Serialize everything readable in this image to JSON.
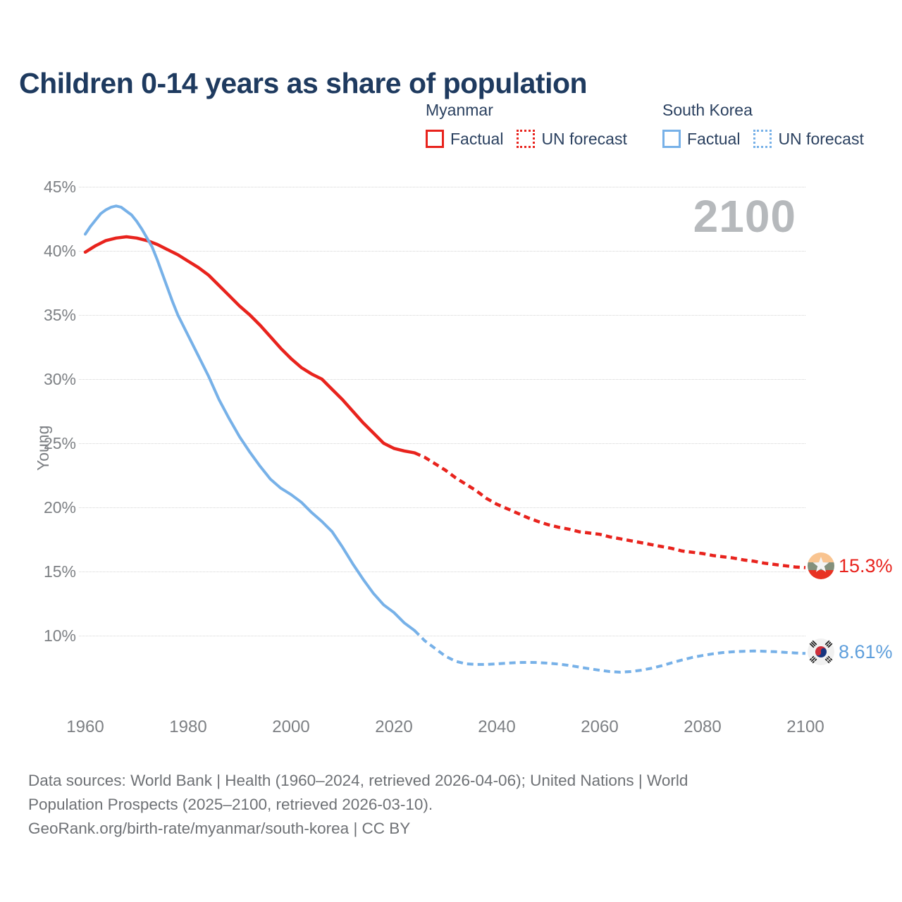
{
  "title": "Children 0-14 years as share of population",
  "watermark": "2100",
  "legend": {
    "myanmar": {
      "label": "Myanmar",
      "factual": "Factual",
      "forecast": "UN forecast"
    },
    "south_korea": {
      "label": "South Korea",
      "factual": "Factual",
      "forecast": "UN forecast"
    }
  },
  "y_axis": {
    "label": "Young",
    "ticks": [
      "45%",
      "40%",
      "35%",
      "30%",
      "25%",
      "20%",
      "15%",
      "10%"
    ]
  },
  "x_axis": {
    "ticks": [
      "1960",
      "1980",
      "2000",
      "2020",
      "2040",
      "2060",
      "2080",
      "2100"
    ]
  },
  "end_labels": {
    "myanmar": "15.3%",
    "south_korea": "8.61%"
  },
  "icons": {
    "myanmar_flag": "myanmar-flag-icon",
    "south_korea_flag": "south-korea-flag-icon"
  },
  "colors": {
    "myanmar_line": "#e8231d",
    "south_korea_line": "#77b1e8",
    "south_korea_text": "#5f9fdc",
    "title_text": "#1e3a5f",
    "axis_text": "#7d8084",
    "watermark_text": "#b6b9bc",
    "footer_text": "#6e7175"
  },
  "footer": {
    "line1": "Data sources: World Bank | Health (1960–2024, retrieved 2026-04-06); United Nations | World",
    "line2": "Population Prospects (2025–2100, retrieved 2026-03-10).",
    "line3": "GeoRank.org/birth-rate/myanmar/south-korea | CC BY"
  },
  "chart_data": {
    "type": "line",
    "title": "Children 0-14 years as share of population",
    "xlabel": "",
    "ylabel": "Young",
    "xlim": [
      1960,
      2100
    ],
    "ylim": [
      6.5,
      45
    ],
    "ytick_values": [
      45,
      40,
      35,
      30,
      25,
      20,
      15,
      10
    ],
    "xtick_values": [
      1960,
      1980,
      2000,
      2020,
      2040,
      2060,
      2080,
      2100
    ],
    "grid": true,
    "legend_position": "top",
    "series": [
      {
        "name": "Myanmar Factual",
        "style": "solid",
        "color": "#e8231d",
        "width": 4.5,
        "points": [
          [
            1960,
            39.9
          ],
          [
            1962,
            40.4
          ],
          [
            1964,
            40.8
          ],
          [
            1966,
            41.0
          ],
          [
            1968,
            41.1
          ],
          [
            1970,
            41.0
          ],
          [
            1972,
            40.8
          ],
          [
            1974,
            40.5
          ],
          [
            1976,
            40.1
          ],
          [
            1978,
            39.7
          ],
          [
            1980,
            39.2
          ],
          [
            1982,
            38.7
          ],
          [
            1984,
            38.1
          ],
          [
            1986,
            37.3
          ],
          [
            1988,
            36.5
          ],
          [
            1990,
            35.7
          ],
          [
            1992,
            35.0
          ],
          [
            1994,
            34.2
          ],
          [
            1996,
            33.3
          ],
          [
            1998,
            32.4
          ],
          [
            2000,
            31.6
          ],
          [
            2002,
            30.9
          ],
          [
            2004,
            30.4
          ],
          [
            2006,
            30.0
          ],
          [
            2008,
            29.2
          ],
          [
            2010,
            28.4
          ],
          [
            2012,
            27.5
          ],
          [
            2014,
            26.6
          ],
          [
            2016,
            25.8
          ],
          [
            2018,
            25.0
          ],
          [
            2020,
            24.6
          ],
          [
            2022,
            24.4
          ],
          [
            2024,
            24.25
          ]
        ]
      },
      {
        "name": "Myanmar UN forecast",
        "style": "dashed",
        "color": "#e8231d",
        "width": 4.5,
        "points": [
          [
            2024,
            24.25
          ],
          [
            2026,
            23.9
          ],
          [
            2028,
            23.4
          ],
          [
            2030,
            22.9
          ],
          [
            2032,
            22.3
          ],
          [
            2034,
            21.8
          ],
          [
            2036,
            21.3
          ],
          [
            2038,
            20.7
          ],
          [
            2040,
            20.25
          ],
          [
            2042,
            19.9
          ],
          [
            2044,
            19.55
          ],
          [
            2046,
            19.2
          ],
          [
            2048,
            18.9
          ],
          [
            2050,
            18.65
          ],
          [
            2052,
            18.45
          ],
          [
            2054,
            18.3
          ],
          [
            2056,
            18.1
          ],
          [
            2058,
            18.0
          ],
          [
            2060,
            17.9
          ],
          [
            2062,
            17.7
          ],
          [
            2064,
            17.55
          ],
          [
            2066,
            17.4
          ],
          [
            2068,
            17.25
          ],
          [
            2070,
            17.1
          ],
          [
            2072,
            16.95
          ],
          [
            2074,
            16.8
          ],
          [
            2076,
            16.6
          ],
          [
            2078,
            16.5
          ],
          [
            2080,
            16.4
          ],
          [
            2082,
            16.25
          ],
          [
            2084,
            16.15
          ],
          [
            2086,
            16.05
          ],
          [
            2088,
            15.9
          ],
          [
            2090,
            15.8
          ],
          [
            2092,
            15.65
          ],
          [
            2094,
            15.55
          ],
          [
            2096,
            15.45
          ],
          [
            2098,
            15.35
          ],
          [
            2100,
            15.3
          ]
        ]
      },
      {
        "name": "South Korea Factual",
        "style": "solid",
        "color": "#77b1e8",
        "width": 4,
        "points": [
          [
            1960,
            41.3
          ],
          [
            1961,
            41.9
          ],
          [
            1962,
            42.4
          ],
          [
            1963,
            42.9
          ],
          [
            1964,
            43.2
          ],
          [
            1965,
            43.4
          ],
          [
            1966,
            43.5
          ],
          [
            1967,
            43.4
          ],
          [
            1968,
            43.1
          ],
          [
            1969,
            42.8
          ],
          [
            1970,
            42.3
          ],
          [
            1971,
            41.7
          ],
          [
            1972,
            41.0
          ],
          [
            1973,
            40.3
          ],
          [
            1974,
            39.3
          ],
          [
            1975,
            38.2
          ],
          [
            1976,
            37.1
          ],
          [
            1977,
            36.0
          ],
          [
            1978,
            35.0
          ],
          [
            1980,
            33.4
          ],
          [
            1982,
            31.8
          ],
          [
            1984,
            30.2
          ],
          [
            1986,
            28.4
          ],
          [
            1988,
            26.9
          ],
          [
            1990,
            25.5
          ],
          [
            1992,
            24.3
          ],
          [
            1994,
            23.2
          ],
          [
            1996,
            22.2
          ],
          [
            1998,
            21.5
          ],
          [
            2000,
            21.0
          ],
          [
            2002,
            20.4
          ],
          [
            2004,
            19.6
          ],
          [
            2006,
            18.9
          ],
          [
            2008,
            18.1
          ],
          [
            2010,
            16.9
          ],
          [
            2012,
            15.6
          ],
          [
            2014,
            14.4
          ],
          [
            2016,
            13.3
          ],
          [
            2018,
            12.4
          ],
          [
            2020,
            11.8
          ],
          [
            2022,
            11.0
          ],
          [
            2024,
            10.4
          ]
        ]
      },
      {
        "name": "South Korea UN forecast",
        "style": "dashed",
        "color": "#77b1e8",
        "width": 4,
        "points": [
          [
            2024,
            10.4
          ],
          [
            2026,
            9.6
          ],
          [
            2028,
            9.0
          ],
          [
            2030,
            8.4
          ],
          [
            2032,
            8.0
          ],
          [
            2034,
            7.8
          ],
          [
            2036,
            7.75
          ],
          [
            2038,
            7.75
          ],
          [
            2040,
            7.8
          ],
          [
            2042,
            7.85
          ],
          [
            2044,
            7.9
          ],
          [
            2046,
            7.92
          ],
          [
            2048,
            7.9
          ],
          [
            2050,
            7.85
          ],
          [
            2052,
            7.78
          ],
          [
            2054,
            7.68
          ],
          [
            2056,
            7.55
          ],
          [
            2058,
            7.42
          ],
          [
            2060,
            7.3
          ],
          [
            2062,
            7.2
          ],
          [
            2064,
            7.15
          ],
          [
            2066,
            7.2
          ],
          [
            2068,
            7.3
          ],
          [
            2070,
            7.45
          ],
          [
            2072,
            7.65
          ],
          [
            2074,
            7.88
          ],
          [
            2076,
            8.1
          ],
          [
            2078,
            8.3
          ],
          [
            2080,
            8.45
          ],
          [
            2082,
            8.58
          ],
          [
            2084,
            8.68
          ],
          [
            2086,
            8.74
          ],
          [
            2088,
            8.78
          ],
          [
            2090,
            8.8
          ],
          [
            2092,
            8.78
          ],
          [
            2094,
            8.75
          ],
          [
            2096,
            8.7
          ],
          [
            2098,
            8.65
          ],
          [
            2100,
            8.61
          ]
        ]
      }
    ],
    "end_annotations": [
      {
        "series": "Myanmar",
        "year": 2100,
        "value": 15.3,
        "label": "15.3%"
      },
      {
        "series": "South Korea",
        "year": 2100,
        "value": 8.61,
        "label": "8.61%"
      }
    ]
  }
}
